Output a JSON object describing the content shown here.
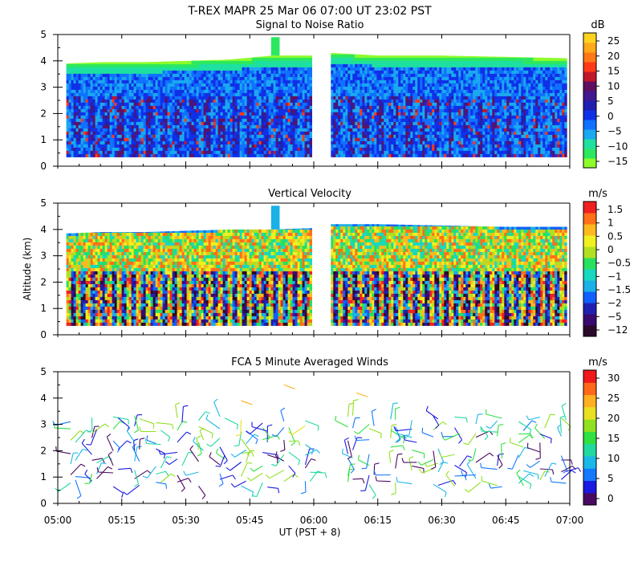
{
  "header": {
    "title_line": "T-REX   MAPR 25 Mar 06   07:00 UT   23:02   PST"
  },
  "chart_data": [
    {
      "type": "heatmap",
      "title": "Signal to Noise Ratio",
      "ylabel": "",
      "ylim": [
        0,
        5
      ],
      "yticks": [
        "0",
        "1",
        "2",
        "3",
        "4",
        "5"
      ],
      "colorbar_unit": "dB",
      "colorbar_labels": [
        "25",
        "20",
        "15",
        "10",
        "5",
        "0",
        "−5",
        "−10",
        "−15"
      ],
      "colorbar_colors": [
        "#8cfc2a",
        "#2ce860",
        "#1ee0a0",
        "#1aa8f0",
        "#1070ff",
        "#1030e8",
        "#2020b0",
        "#401890",
        "#601060",
        "#c0182a",
        "#ff3a18",
        "#ff7818",
        "#ffa818",
        "#ffd21e"
      ],
      "data_top_km": 4.0,
      "data_bottom_km": 0.35,
      "columns_left": [
        {
          "x": "05:02",
          "top": 3.9
        },
        {
          "x": "05:10",
          "top": 3.95
        },
        {
          "x": "05:20",
          "top": 3.95
        },
        {
          "x": "05:30",
          "top": 4.0
        },
        {
          "x": "05:40",
          "top": 4.05
        },
        {
          "x": "05:50",
          "top": 4.2
        },
        {
          "x": "05:59",
          "top": 4.2
        }
      ],
      "columns_right": [
        {
          "x": "06:04",
          "top": 4.3
        },
        {
          "x": "06:15",
          "top": 4.2
        },
        {
          "x": "06:30",
          "top": 4.2
        },
        {
          "x": "06:45",
          "top": 4.15
        },
        {
          "x": "06:59",
          "top": 4.1
        }
      ],
      "spike": {
        "x_start": "05:50",
        "x_end": "05:52",
        "top": 4.9
      }
    },
    {
      "type": "heatmap",
      "title": "Vertical Velocity",
      "ylabel": "Altitude (km)",
      "ylim": [
        0,
        5
      ],
      "yticks": [
        "0",
        "1",
        "2",
        "3",
        "4",
        "5"
      ],
      "colorbar_unit": "m/s",
      "colorbar_labels": [
        "1.5",
        "1",
        "0.5",
        "0",
        "−0.5",
        "−1",
        "−1.5",
        "−2",
        "−5",
        "−12"
      ],
      "colorbar_colors": [
        "#2a0a2a",
        "#3a0a70",
        "#2020b0",
        "#1060ff",
        "#1ab0e8",
        "#18d8c0",
        "#26e060",
        "#b0e020",
        "#f0f020",
        "#ffb820",
        "#ff7018",
        "#f02020"
      ],
      "data_top_km": 3.8,
      "data_bottom_km": 0.35,
      "columns_left": [
        {
          "x": "05:02",
          "top": 3.85
        },
        {
          "x": "05:10",
          "top": 3.9
        },
        {
          "x": "05:20",
          "top": 3.9
        },
        {
          "x": "05:30",
          "top": 3.95
        },
        {
          "x": "05:40",
          "top": 4.0
        },
        {
          "x": "05:50",
          "top": 4.0
        },
        {
          "x": "05:59",
          "top": 4.05
        }
      ],
      "columns_right": [
        {
          "x": "06:04",
          "top": 4.2
        },
        {
          "x": "06:15",
          "top": 4.2
        },
        {
          "x": "06:30",
          "top": 4.15
        },
        {
          "x": "06:45",
          "top": 4.1
        },
        {
          "x": "06:59",
          "top": 4.1
        }
      ],
      "spike": {
        "x_start": "05:50",
        "x_end": "05:52",
        "top": 4.9
      }
    },
    {
      "type": "wind_barbs",
      "title": "FCA 5 Minute Averaged Winds",
      "ylabel": "",
      "ylim": [
        0,
        5
      ],
      "yticks": [
        "0",
        "1",
        "2",
        "3",
        "4",
        "5"
      ],
      "colorbar_unit": "m/s",
      "colorbar_labels": [
        "30",
        "25",
        "20",
        "15",
        "10",
        "5",
        "0"
      ],
      "colorbar_colors": [
        "#4a0a60",
        "#1a1ae0",
        "#1478ff",
        "#1ab8e8",
        "#20d8a0",
        "#30e040",
        "#90e020",
        "#e8e020",
        "#ffb020",
        "#ff6818",
        "#f01818"
      ],
      "barb_times": [
        "05:03",
        "05:08",
        "05:13",
        "05:18",
        "05:23",
        "05:28",
        "05:33",
        "05:38",
        "05:43",
        "05:48",
        "05:53",
        "05:58",
        "06:08",
        "06:13",
        "06:18",
        "06:23",
        "06:28",
        "06:33",
        "06:38",
        "06:43",
        "06:48",
        "06:53",
        "06:58"
      ],
      "barb_altitudes_km": [
        0.6,
        1.0,
        1.4,
        1.8,
        2.2,
        2.6,
        3.0
      ]
    }
  ],
  "x_axis": {
    "label": "UT  (PST + 8)",
    "ticks": [
      "05:00",
      "05:15",
      "05:30",
      "05:45",
      "06:00",
      "06:15",
      "06:30",
      "06:45",
      "07:00"
    ],
    "range_min": [
      0,
      120
    ],
    "gap_minutes": [
      60,
      64
    ]
  }
}
